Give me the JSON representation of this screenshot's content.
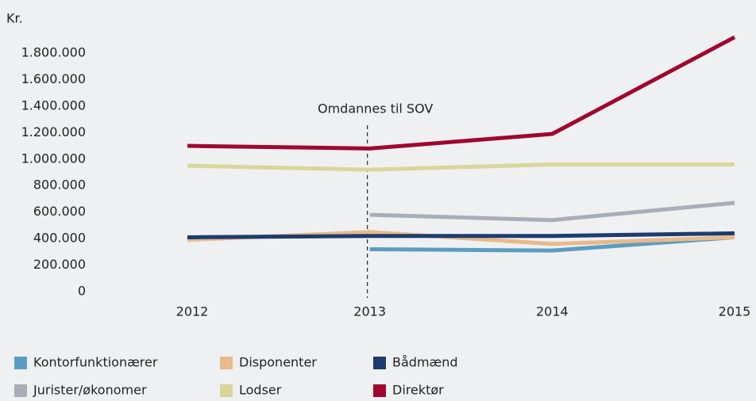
{
  "chart_data": {
    "type": "line",
    "y_label": "Kr.",
    "annotation": "Omdannes til SOV",
    "categories": [
      "2012",
      "2013",
      "2014",
      "2015"
    ],
    "series": [
      {
        "name": "Kontorfunktionærer",
        "color": "#5b9cc0",
        "values": [
          null,
          320000,
          310000,
          410000
        ]
      },
      {
        "name": "Disponenter",
        "color": "#e8b98a",
        "values": [
          390000,
          450000,
          360000,
          410000
        ]
      },
      {
        "name": "Bådmænd",
        "color": "#1d3c6e",
        "values": [
          410000,
          420000,
          420000,
          440000
        ]
      },
      {
        "name": "Jurister/økonomer",
        "color": "#a8adb7",
        "values": [
          null,
          580000,
          540000,
          670000
        ]
      },
      {
        "name": "Lodser",
        "color": "#d9d69a",
        "values": [
          950000,
          920000,
          960000,
          960000
        ]
      },
      {
        "name": "Direktør",
        "color": "#a0072f",
        "values": [
          1100000,
          1080000,
          1190000,
          1920000
        ]
      }
    ],
    "ylim": [
      0,
      1800000
    ],
    "yticks": [
      0,
      {
        "value": 200000,
        "label": "200.000"
      },
      {
        "value": 400000,
        "label": "400.000"
      },
      {
        "value": 600000,
        "label": "600.000"
      },
      {
        "value": 800000,
        "label": "800.000"
      },
      {
        "value": 1000000,
        "label": "1.000.000"
      },
      {
        "value": 1200000,
        "label": "1.200.000"
      },
      {
        "value": 1400000,
        "label": "1.400.000"
      },
      {
        "value": 1600000,
        "label": "1.600.000"
      },
      {
        "value": 1800000,
        "label": "1.800.000"
      }
    ],
    "grid": false,
    "legend": "bottom"
  }
}
